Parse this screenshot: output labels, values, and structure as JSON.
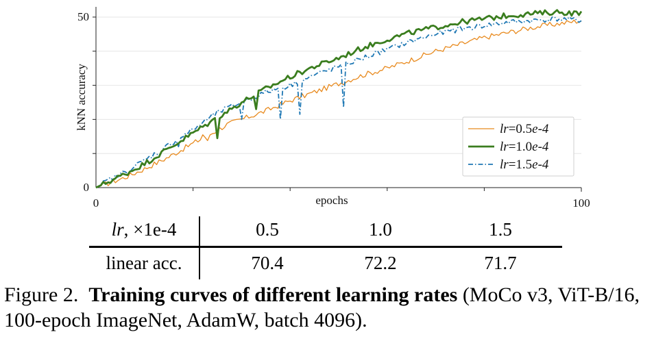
{
  "chart_data": {
    "type": "line",
    "title": "",
    "xlabel": "epochs",
    "ylabel": "kNN accuracy",
    "xlim": [
      0,
      100
    ],
    "ylim": [
      0,
      53
    ],
    "xticks": [
      0,
      100
    ],
    "yticks": [
      0,
      50
    ],
    "ygrid": [
      10,
      20,
      30,
      40,
      50
    ],
    "xgrid_minor": [
      20,
      40,
      60,
      80
    ],
    "legend_position": "lower-right",
    "series": [
      {
        "name": "lr=0.5e-4",
        "legend_var": "lr",
        "legend_val": "=0.5",
        "legend_exp": "e-4",
        "color": "#e8891c",
        "style": "solid",
        "anchors": [
          [
            0,
            0
          ],
          [
            3,
            1.5
          ],
          [
            6,
            3
          ],
          [
            10,
            5.5
          ],
          [
            15,
            9
          ],
          [
            20,
            13
          ],
          [
            24,
            16
          ],
          [
            27,
            18.5
          ],
          [
            30,
            20
          ],
          [
            35,
            22.5
          ],
          [
            40,
            25.5
          ],
          [
            45,
            28
          ],
          [
            50,
            30.5
          ],
          [
            55,
            33
          ],
          [
            60,
            35
          ],
          [
            65,
            37.5
          ],
          [
            70,
            40
          ],
          [
            75,
            42
          ],
          [
            80,
            44
          ],
          [
            85,
            45.5
          ],
          [
            90,
            47
          ],
          [
            95,
            48
          ],
          [
            100,
            49
          ]
        ],
        "dips": [
          [
            22,
            15.5
          ],
          [
            23,
            13.8
          ]
        ]
      },
      {
        "name": "lr=1.0e-4",
        "legend_var": "lr",
        "legend_val": "=1.0",
        "legend_exp": "e-4",
        "color": "#3a7d1e",
        "style": "solid",
        "anchors": [
          [
            0,
            0
          ],
          [
            3,
            2
          ],
          [
            6,
            4
          ],
          [
            10,
            7
          ],
          [
            15,
            11.5
          ],
          [
            20,
            16
          ],
          [
            25,
            20.5
          ],
          [
            30,
            25
          ],
          [
            35,
            29
          ],
          [
            40,
            32.5
          ],
          [
            45,
            35.5
          ],
          [
            50,
            38
          ],
          [
            55,
            41
          ],
          [
            60,
            43.5
          ],
          [
            65,
            45.5
          ],
          [
            70,
            47
          ],
          [
            75,
            48.5
          ],
          [
            80,
            49.5
          ],
          [
            85,
            50.5
          ],
          [
            90,
            51
          ],
          [
            95,
            51.5
          ],
          [
            100,
            51
          ]
        ],
        "dips": [
          [
            25,
            14.5
          ],
          [
            33,
            23
          ]
        ]
      },
      {
        "name": "lr=1.5e-4",
        "legend_var": "lr",
        "legend_val": "=1.5",
        "legend_exp": "e-4",
        "color": "#1f78b4",
        "style": "dashdot",
        "anchors": [
          [
            0,
            0
          ],
          [
            3,
            2.5
          ],
          [
            6,
            4.5
          ],
          [
            10,
            8
          ],
          [
            15,
            12.5
          ],
          [
            20,
            17
          ],
          [
            25,
            22
          ],
          [
            30,
            25
          ],
          [
            35,
            28
          ],
          [
            40,
            30
          ],
          [
            45,
            33
          ],
          [
            50,
            35.5
          ],
          [
            55,
            38
          ],
          [
            60,
            40.5
          ],
          [
            65,
            43
          ],
          [
            70,
            45
          ],
          [
            75,
            46.5
          ],
          [
            80,
            47.5
          ],
          [
            85,
            48.5
          ],
          [
            90,
            49
          ],
          [
            95,
            49.5
          ],
          [
            100,
            49
          ]
        ],
        "dips": [
          [
            13,
            9.5
          ],
          [
            17,
            12
          ],
          [
            30,
            20
          ],
          [
            38,
            20
          ],
          [
            42,
            21.5
          ],
          [
            51,
            23.5
          ]
        ]
      }
    ]
  },
  "table": {
    "header_label_var": "lr",
    "header_label_rest": ", ×1e-4",
    "header_values": [
      "0.5",
      "1.0",
      "1.5"
    ],
    "row_label": "linear acc.",
    "row_values": [
      "70.4",
      "72.2",
      "71.7"
    ]
  },
  "caption": {
    "prefix": "Figure 2.  ",
    "bold": "Training curves of different learning rates",
    "rest": " (MoCo v3, ViT-B/16, 100-epoch ImageNet, AdamW, batch 4096)."
  }
}
